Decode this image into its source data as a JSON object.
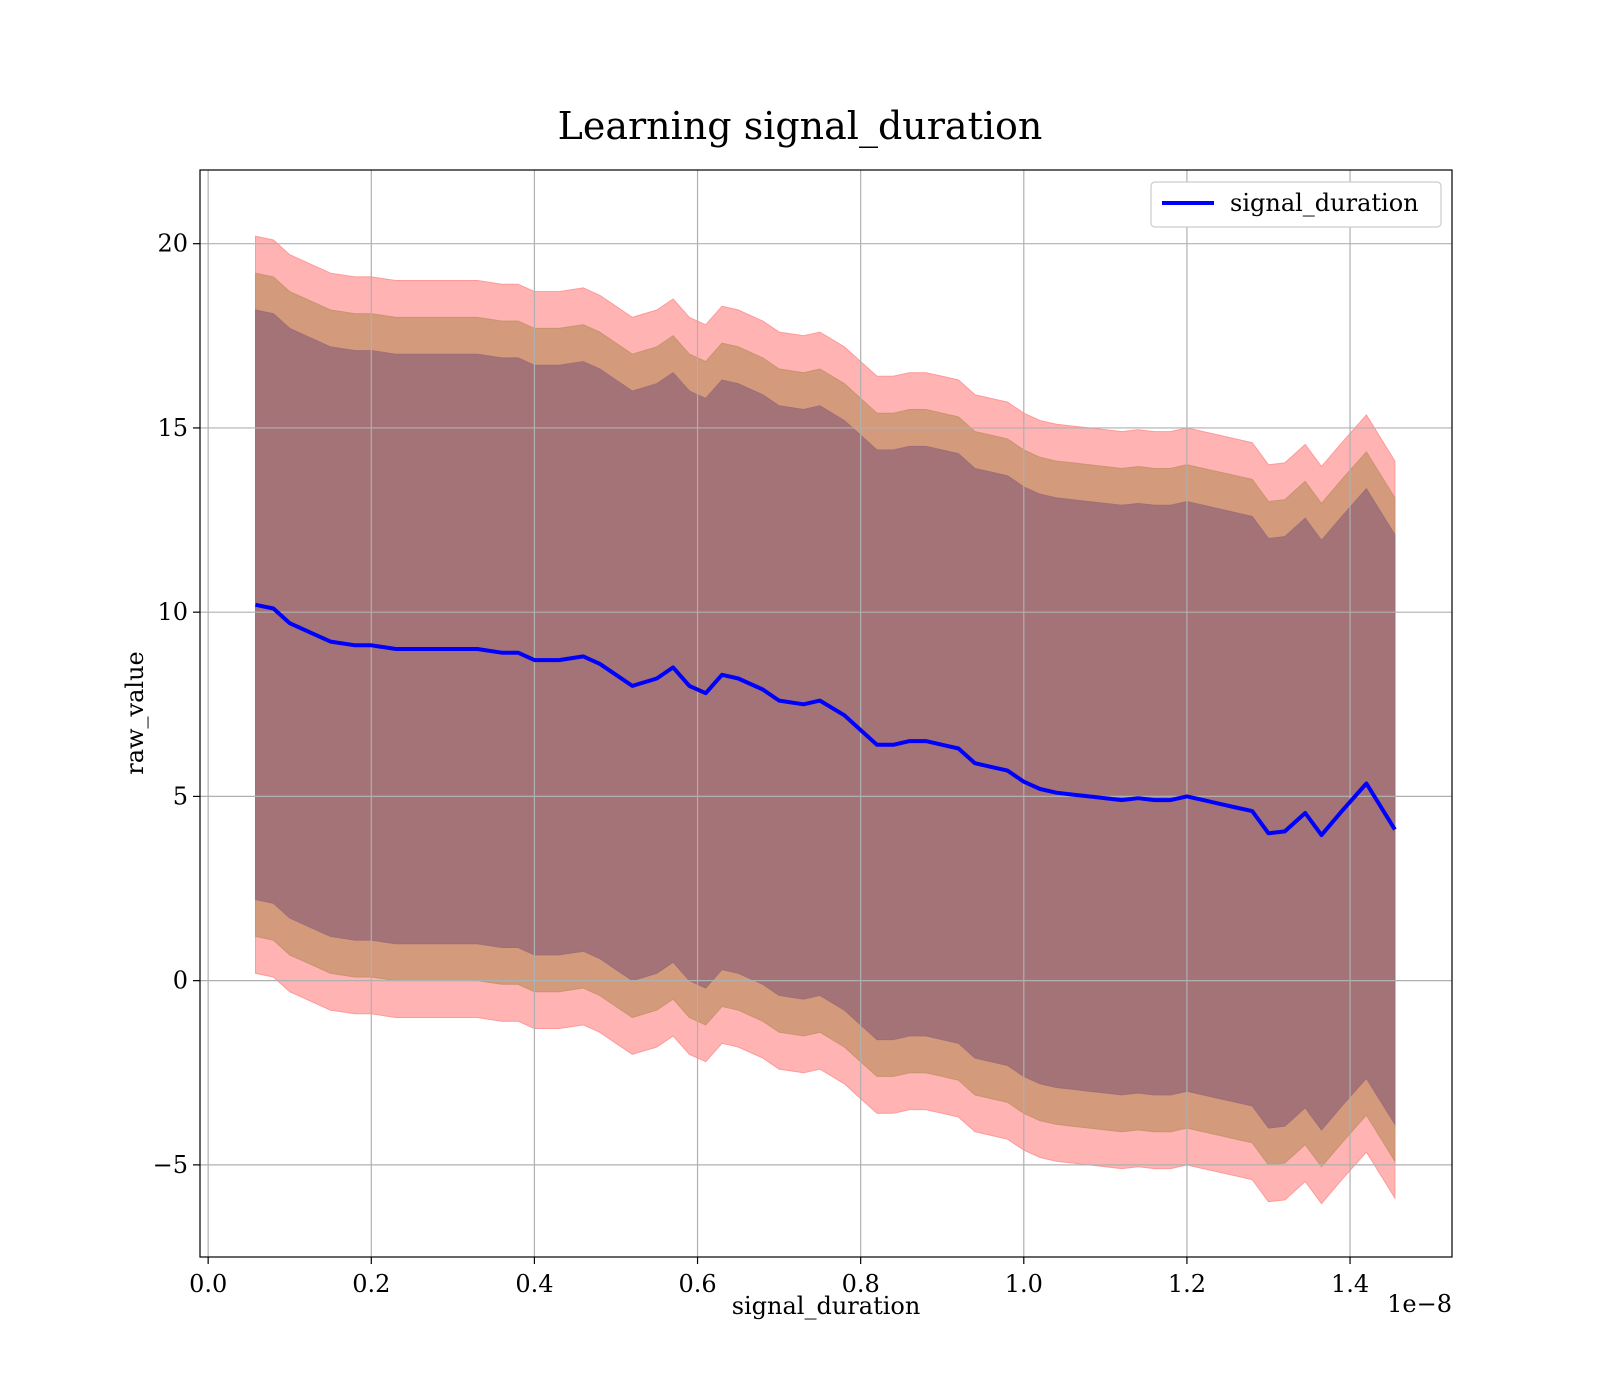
{
  "chart_data": {
    "type": "line",
    "title": "Learning signal_duration",
    "xlabel": "signal_duration",
    "ylabel": "raw_value",
    "x_offset_label": "1e−8",
    "xlim": [
      -0.01,
      1.525
    ],
    "ylim": [
      -7.5,
      22
    ],
    "xticks": [
      0.0,
      0.2,
      0.4,
      0.6,
      0.8,
      1.0,
      1.2,
      1.4
    ],
    "xtick_labels": [
      "0.0",
      "0.2",
      "0.4",
      "0.6",
      "0.8",
      "1.0",
      "1.2",
      "1.4"
    ],
    "yticks": [
      -5,
      0,
      5,
      10,
      15,
      20
    ],
    "ytick_labels": [
      "−5",
      "0",
      "5",
      "10",
      "15",
      "20"
    ],
    "grid": true,
    "legend": {
      "position": "top-right",
      "entries": [
        "signal_duration"
      ]
    },
    "colors": {
      "line": "#0000ff",
      "band_outer": "#ff9999",
      "band_mid": "#c8946e",
      "band_inner": "#9e6f78"
    },
    "x": [
      0.058,
      0.08,
      0.1,
      0.12,
      0.15,
      0.18,
      0.2,
      0.23,
      0.26,
      0.3,
      0.33,
      0.36,
      0.38,
      0.4,
      0.43,
      0.46,
      0.48,
      0.5,
      0.52,
      0.55,
      0.57,
      0.59,
      0.61,
      0.63,
      0.65,
      0.68,
      0.7,
      0.73,
      0.75,
      0.78,
      0.8,
      0.82,
      0.84,
      0.86,
      0.88,
      0.9,
      0.92,
      0.94,
      0.96,
      0.98,
      1.0,
      1.02,
      1.04,
      1.06,
      1.08,
      1.1,
      1.12,
      1.14,
      1.16,
      1.18,
      1.2,
      1.22,
      1.24,
      1.26,
      1.28,
      1.3,
      1.32,
      1.345,
      1.365,
      1.39,
      1.42,
      1.455
    ],
    "series": [
      {
        "name": "signal_duration",
        "y": [
          10.2,
          10.1,
          9.7,
          9.5,
          9.2,
          9.1,
          9.1,
          9.0,
          9.0,
          9.0,
          9.0,
          8.9,
          8.9,
          8.7,
          8.7,
          8.8,
          8.6,
          8.3,
          8.0,
          8.2,
          8.5,
          8.0,
          7.8,
          8.3,
          8.2,
          7.9,
          7.6,
          7.5,
          7.6,
          7.2,
          6.8,
          6.4,
          6.4,
          6.5,
          6.5,
          6.4,
          6.3,
          5.9,
          5.8,
          5.7,
          5.4,
          5.2,
          5.1,
          5.05,
          5.0,
          4.95,
          4.9,
          4.95,
          4.9,
          4.9,
          5.0,
          4.9,
          4.8,
          4.7,
          4.6,
          4.0,
          4.05,
          4.55,
          3.95,
          4.6,
          5.35,
          4.1
        ]
      }
    ],
    "bands": [
      {
        "name": "outer",
        "lower_offset": -10.0,
        "upper_offset": 10.0
      },
      {
        "name": "mid",
        "lower_offset": -9.0,
        "upper_offset": 9.0
      },
      {
        "name": "inner",
        "lower_offset": -8.0,
        "upper_offset": 8.0
      }
    ]
  }
}
